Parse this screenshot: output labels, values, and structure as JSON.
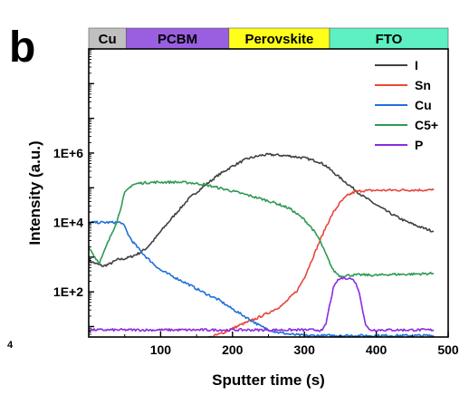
{
  "panel_label": "b",
  "corner_mark": "4",
  "chart_data": {
    "type": "line",
    "xlabel": "Sputter time (s)",
    "ylabel": "Intensity (a.u.)",
    "xlim": [
      0,
      500
    ],
    "ylim": [
      5,
      1000000000
    ],
    "yscale": "log",
    "x_ticks": [
      100,
      200,
      300,
      400,
      500
    ],
    "x_tick_labels": [
      "100",
      "200",
      "300",
      "400",
      "500"
    ],
    "y_ticks": [
      100,
      10000,
      1000000
    ],
    "y_tick_labels": [
      "1E+2",
      "1E+4",
      "1E+6"
    ],
    "grid": false,
    "legend_position": "top-right",
    "layers": [
      {
        "label": "Cu",
        "x_start": 0,
        "x_end": 52,
        "color": "#c0c0c0"
      },
      {
        "label": "PCBM",
        "x_start": 52,
        "x_end": 195,
        "color": "#9a5fe0"
      },
      {
        "label": "Perovskite",
        "x_start": 195,
        "x_end": 335,
        "color": "#ffff1a"
      },
      {
        "label": "FTO",
        "x_start": 335,
        "x_end": 500,
        "color": "#5ef0c2"
      }
    ],
    "series": [
      {
        "name": "I",
        "color": "#404040",
        "x": [
          0,
          10,
          20,
          30,
          40,
          50,
          60,
          70,
          80,
          90,
          100,
          120,
          140,
          160,
          180,
          200,
          220,
          240,
          250,
          260,
          280,
          300,
          320,
          330,
          340,
          360,
          380,
          400,
          420,
          440,
          460,
          480
        ],
        "y": [
          800,
          650,
          550,
          650,
          850,
          900,
          1050,
          1300,
          1800,
          3000,
          5500,
          17000,
          50000,
          110000,
          230000,
          420000,
          680000,
          860000,
          900000,
          880000,
          820000,
          720000,
          560000,
          430000,
          280000,
          130000,
          60000,
          32000,
          18000,
          11000,
          7500,
          5500
        ]
      },
      {
        "name": "Sn",
        "color": "#e8463a",
        "x": [
          150,
          170,
          190,
          210,
          230,
          250,
          270,
          290,
          300,
          310,
          320,
          330,
          340,
          350,
          360,
          370,
          380,
          400,
          420,
          440,
          460,
          480
        ],
        "y": [
          4,
          5,
          7,
          11,
          16,
          25,
          42,
          110,
          260,
          800,
          2500,
          7500,
          19000,
          38000,
          60000,
          76000,
          82000,
          84000,
          85000,
          86000,
          86000,
          86000
        ]
      },
      {
        "name": "Cu",
        "color": "#1f6fd6",
        "x": [
          0,
          10,
          20,
          30,
          40,
          45,
          50,
          55,
          60,
          70,
          80,
          90,
          100,
          120,
          140,
          160,
          180,
          200,
          220,
          240,
          260,
          280,
          300,
          320,
          340,
          360,
          380,
          400,
          420,
          440,
          460,
          480
        ],
        "y": [
          10000,
          10000,
          10000,
          10000,
          10000,
          10000,
          7500,
          4500,
          3000,
          1700,
          1000,
          650,
          420,
          260,
          160,
          95,
          60,
          32,
          18,
          10,
          7,
          6,
          5.5,
          5.5,
          5.5,
          5.5,
          5.5,
          5.5,
          5.5,
          5.5,
          5.5,
          5.5
        ]
      },
      {
        "name": "C5+",
        "color": "#2e9a55",
        "x": [
          0,
          10,
          15,
          20,
          25,
          30,
          40,
          50,
          60,
          70,
          80,
          90,
          100,
          120,
          140,
          160,
          180,
          200,
          220,
          240,
          260,
          280,
          300,
          310,
          320,
          330,
          340,
          350,
          360,
          380,
          400,
          420,
          440,
          460,
          480
        ],
        "y": [
          2000,
          900,
          700,
          1200,
          2200,
          3800,
          12000,
          70000,
          120000,
          135000,
          140000,
          143000,
          145000,
          145000,
          140000,
          125000,
          100000,
          80000,
          62000,
          48000,
          36000,
          25000,
          12000,
          7000,
          3500,
          1200,
          420,
          280,
          300,
          310,
          300,
          320,
          320,
          330,
          340
        ]
      },
      {
        "name": "P",
        "color": "#8a2be2",
        "x": [
          0,
          50,
          100,
          150,
          200,
          250,
          300,
          320,
          325,
          330,
          335,
          340,
          345,
          350,
          355,
          360,
          365,
          370,
          375,
          380,
          385,
          390,
          400,
          440,
          480
        ],
        "y": [
          8,
          8,
          8,
          8,
          8,
          8,
          8,
          8,
          7.5,
          12,
          40,
          120,
          200,
          240,
          250,
          250,
          240,
          200,
          120,
          40,
          12,
          8,
          8,
          8,
          8
        ]
      }
    ]
  }
}
